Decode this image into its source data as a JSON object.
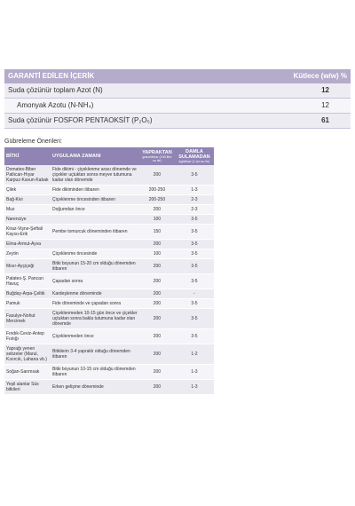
{
  "guarantee": {
    "title": "GARANTİ EDİLEN İÇERİK",
    "unit_label": "Kütlece (w/w) %",
    "rows": [
      {
        "label": "Suda çözünür toplam Azot (N)",
        "value": 12,
        "bold": true,
        "indent": false
      },
      {
        "label": "Amonyak Azotu (N-NH₄)",
        "value": 12,
        "bold": false,
        "indent": true
      },
      {
        "label": "Suda çözünür FOSFOR PENTAOKSİT (P₂O₅)",
        "value": 61,
        "bold": true,
        "indent": false
      }
    ]
  },
  "recommendations": {
    "title": "Gübreleme Önerileri:",
    "headers": {
      "plant": "BİTKİ",
      "time": "UYGULAMA ZAMANI",
      "foliar": "YAPRAKTAN",
      "foliar_unit": "gram/dekar (100 litre su ile)",
      "drip": "DAMLA SULAMADAN",
      "drip_unit": "kg/dekar (1 ton su ile)"
    },
    "rows": [
      {
        "plant": "Domates-Biber Patlıcan-Hıyar Karpuz-Kavun-Kabak",
        "time": "Fide dikimi - çiçeklenme arası dönemde ve çiçekler uçtuktan sonra meyve tutumuna kadar olan dönemde",
        "foliar": "200",
        "drip": "3-5"
      },
      {
        "plant": "Çilek",
        "time": "Fide dikiminden itibaren",
        "foliar": "200-250",
        "drip": "1-3"
      },
      {
        "plant": "Bağ-Kivi",
        "time": "Çiçeklenme öncesinden itibaren",
        "foliar": "200-250",
        "drip": "2-3"
      },
      {
        "plant": "Muz",
        "time": "Doğumdan önce",
        "foliar": "200",
        "drip": "2-3"
      },
      {
        "plant": "Narenciye",
        "foliar": "100",
        "drip": "3-5"
      },
      {
        "plant": "Kiraz-Vişne-Şeftali Kayısı-Erik",
        "time": "Pembe tomurcuk döneminden itibaren",
        "foliar": "150",
        "drip": "3-5"
      },
      {
        "plant": "Elma-Armut-Ayva",
        "foliar": "200",
        "drip": "3-5"
      },
      {
        "plant": "Zeytin",
        "time": "Çiçeklenme öncesinde",
        "foliar": "100",
        "drip": "3-5"
      },
      {
        "plant": "Mısır-Ayçiçeği",
        "time": "Bitki boyunun 15-20 cm olduğu dönemden itibaren",
        "foliar": "200",
        "drip": "3-5"
      },
      {
        "plant": "Patates-Ş. Pancarı Havuç",
        "time": "Çapadan sonra",
        "foliar": "200",
        "drip": "3-5"
      },
      {
        "plant": "Buğday-Arpa-Çeltik",
        "time": "Kardeşlenme döneminde",
        "foliar": "200",
        "drip": "-"
      },
      {
        "plant": "Pamuk",
        "time": "Fide döneminde ve çapadan sonra",
        "foliar": "200",
        "drip": "3-5"
      },
      {
        "plant": "Fasulye-Nohut Mercimek",
        "time": "Çiçeklenmeden 10-15 gün önce ve çiçekler uçtuktan sonra bakla tutumuna kadar olan dönemde",
        "foliar": "200",
        "drip": "3-5"
      },
      {
        "plant": "Fındık-Ceviz-Antep Fıstığı",
        "time": "Çiçeklenmeden önce",
        "foliar": "200",
        "drip": "3-5"
      },
      {
        "plant": "Yaprağı yenen sebzeler (Marul, Kıvırcık, Lahana vb.)",
        "time": "Bitkilerin 3-4 yapraklı olduğu dönemden itibaren",
        "foliar": "200",
        "drip": "1-2"
      },
      {
        "plant": "Soğan-Sarımsak",
        "time": "Bitki boyunun 10-15 cm olduğu dönemden itibaren",
        "foliar": "200",
        "drip": "1-3"
      },
      {
        "plant": "Yeşil alanlar Süs bitkileri",
        "time": "Erken gelişme döneminde",
        "foliar": "200",
        "drip": "1-3"
      }
    ]
  }
}
